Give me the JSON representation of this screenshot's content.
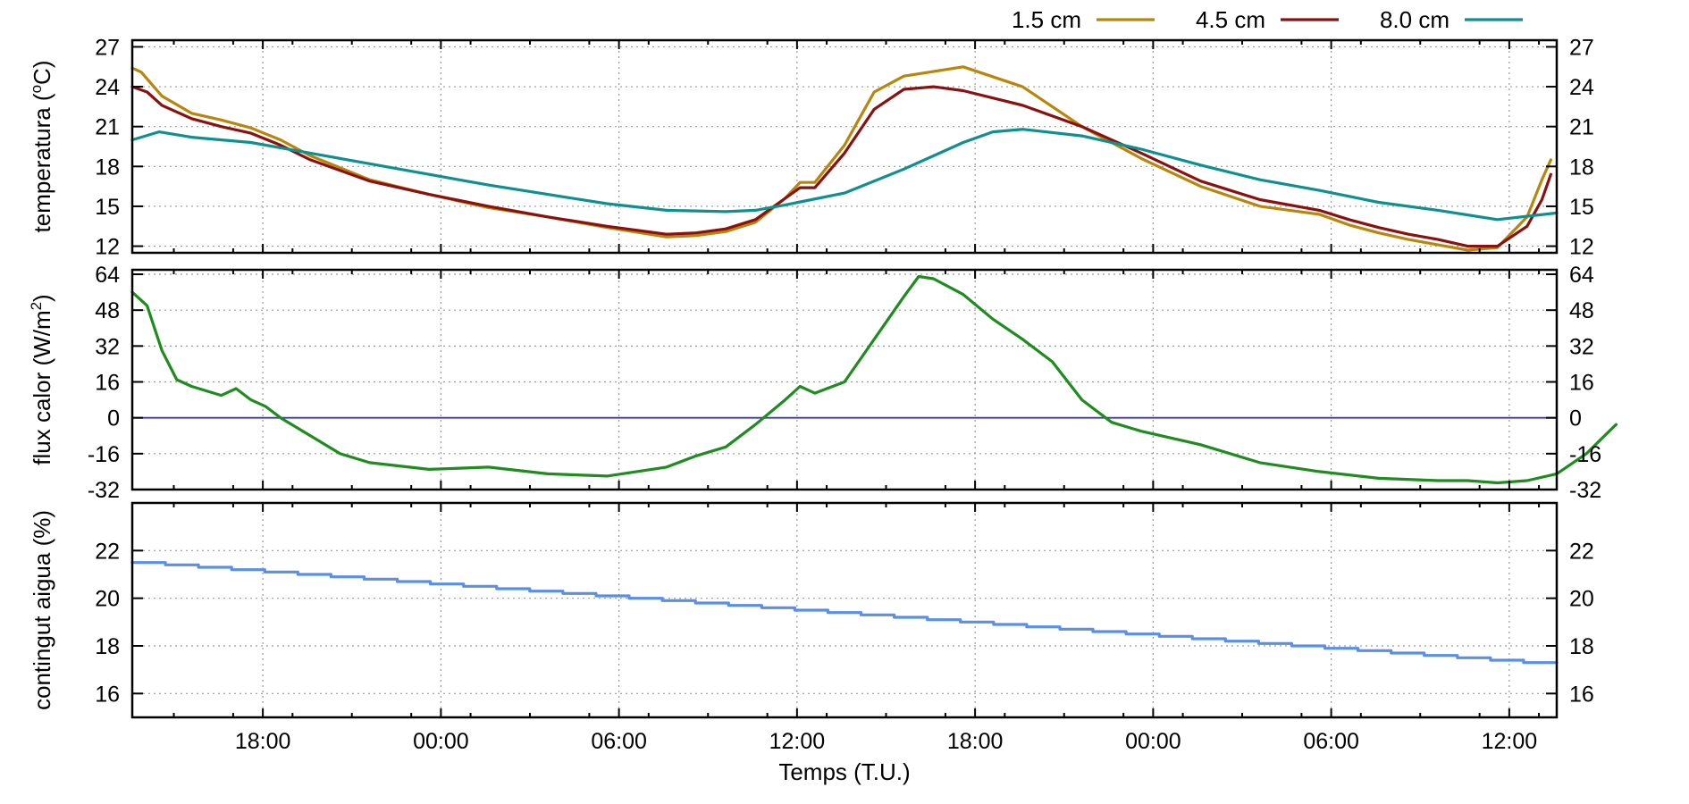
{
  "chart_data": [
    {
      "type": "line",
      "id": "temperature",
      "ylabel": "temperatura (°C)",
      "ylabel_parts": [
        "temperatura (",
        "o",
        "C)"
      ],
      "ylim": [
        11.5,
        27.5
      ],
      "yticks": [
        12,
        15,
        18,
        21,
        24,
        27
      ],
      "grid": true,
      "legend": "top-right, outside plot",
      "series": [
        {
          "name": "1.5 cm",
          "color": "#b8860b",
          "x": [
            0,
            0.3,
            1,
            2,
            3,
            4,
            5,
            6,
            8,
            10,
            12,
            14,
            16,
            18,
            19,
            20,
            21,
            22,
            22.5,
            23,
            24,
            25,
            26,
            28,
            30,
            32,
            34,
            36,
            38,
            40,
            41,
            42,
            43,
            44,
            45,
            46,
            47,
            47.5,
            47.8
          ],
          "y": [
            25.4,
            25.1,
            23.3,
            22.0,
            21.5,
            20.9,
            20.0,
            18.8,
            17.0,
            15.9,
            14.9,
            14.2,
            13.4,
            12.7,
            12.8,
            13.1,
            13.8,
            15.6,
            16.8,
            16.8,
            19.6,
            23.6,
            24.8,
            25.5,
            24.0,
            21.0,
            18.6,
            16.5,
            15.0,
            14.4,
            13.6,
            13.0,
            12.5,
            12.1,
            11.7,
            11.9,
            14.2,
            17.0,
            18.5
          ]
        },
        {
          "name": "4.5 cm",
          "color": "#8b1010",
          "x": [
            0,
            0.5,
            1,
            2,
            3,
            4,
            5,
            6,
            8,
            10,
            12,
            14,
            16,
            18,
            19,
            20,
            21,
            22,
            22.5,
            23,
            24,
            25,
            26,
            27,
            28,
            30,
            32,
            34,
            36,
            38,
            40,
            41,
            42,
            43,
            44,
            45,
            46,
            47,
            47.5,
            47.8
          ],
          "y": [
            24.0,
            23.6,
            22.6,
            21.6,
            21.0,
            20.5,
            19.6,
            18.5,
            16.9,
            15.9,
            15.0,
            14.2,
            13.5,
            12.9,
            13.0,
            13.3,
            14.0,
            15.6,
            16.4,
            16.4,
            19.0,
            22.3,
            23.8,
            24.0,
            23.7,
            22.6,
            21.0,
            19.0,
            16.9,
            15.5,
            14.7,
            14.0,
            13.4,
            12.9,
            12.5,
            12.0,
            12.0,
            13.5,
            15.5,
            17.4
          ]
        },
        {
          "name": "8.0 cm",
          "color": "#0f9090",
          "x": [
            0,
            0.9,
            2,
            4,
            6,
            8,
            10,
            12,
            14,
            16,
            18,
            20,
            21,
            22,
            24,
            26,
            28,
            29,
            30,
            32,
            34,
            36,
            38,
            40,
            42,
            44,
            46,
            48
          ],
          "y": [
            20.0,
            20.6,
            20.2,
            19.8,
            19.0,
            18.2,
            17.4,
            16.6,
            15.9,
            15.2,
            14.7,
            14.6,
            14.7,
            15.1,
            16.0,
            17.8,
            19.8,
            20.6,
            20.8,
            20.3,
            19.3,
            18.1,
            17.0,
            16.2,
            15.3,
            14.7,
            14.0,
            14.5
          ]
        }
      ]
    },
    {
      "type": "line",
      "id": "heat-flux",
      "ylabel": "flux calor (W/m²)",
      "ylabel_parts": [
        "flux calor (W/m",
        "2",
        ")"
      ],
      "ylim": [
        -32,
        66
      ],
      "yticks": [
        -32,
        -16,
        0,
        16,
        32,
        48,
        64
      ],
      "grid": true,
      "zero_line_color": "#3a3aa8",
      "series": [
        {
          "name": "",
          "color": "#1e8c1e",
          "x": [
            0,
            0.5,
            1,
            1.5,
            2,
            3,
            3.5,
            4,
            4.5,
            5,
            6,
            7,
            8,
            10,
            12,
            14,
            16,
            18,
            19,
            20,
            21,
            22,
            22.5,
            23,
            24,
            25,
            26,
            26.5,
            27,
            28,
            29,
            30,
            31,
            32,
            33,
            34,
            36,
            38,
            40,
            42,
            44,
            45,
            46,
            47,
            48,
            49,
            50
          ],
          "y": [
            56,
            50,
            30,
            17,
            14,
            10,
            13,
            8,
            5,
            0,
            -8,
            -16,
            -20,
            -23,
            -22,
            -25,
            -26,
            -22,
            -17,
            -13,
            -3,
            8,
            14,
            11,
            16,
            35,
            54,
            63,
            62,
            55,
            44,
            35,
            25,
            8,
            -2,
            -6,
            -12,
            -20,
            -24,
            -27,
            -28,
            -28,
            -29,
            -28,
            -25,
            -16,
            -3
          ]
        }
      ]
    },
    {
      "type": "line",
      "id": "water-content",
      "ylabel": "contingut aigua (%)",
      "ylim": [
        15,
        24
      ],
      "yticks": [
        16,
        18,
        20,
        22
      ],
      "grid": true,
      "series": [
        {
          "name": "",
          "color": "#5b8fe6",
          "x": [
            0,
            48
          ],
          "y": [
            21.5,
            17.3
          ]
        }
      ]
    }
  ],
  "shared_x_axis": {
    "xlabel": "Temps (T.U.)",
    "ticks": [
      "18:00",
      "00:00",
      "06:00",
      "12:00",
      "18:00",
      "00:00",
      "06:00",
      "12:00"
    ],
    "tick_positions_hours": [
      4.4,
      10.4,
      16.4,
      22.4,
      28.4,
      34.4,
      40.4,
      46.4
    ],
    "xlim_hours": [
      0,
      48
    ]
  }
}
